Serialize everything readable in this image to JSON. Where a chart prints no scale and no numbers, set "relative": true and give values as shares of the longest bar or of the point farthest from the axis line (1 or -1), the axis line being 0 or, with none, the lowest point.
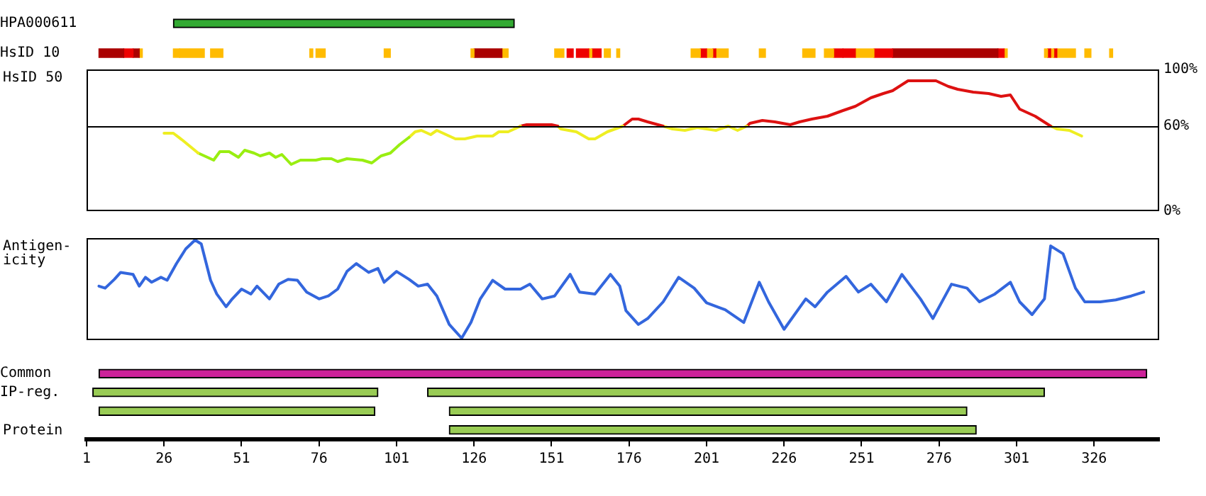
{
  "chart_data": [
    {
      "type": "bar",
      "orientation": "horizontal",
      "categories": [
        "HPA000611",
        "HsID 10"
      ],
      "xlim": [
        1,
        347
      ],
      "tick_labels": "y",
      "series": [
        {
          "color": "#33aa33",
          "base": [
            29,
            null
          ],
          "values": [
            110,
            null
          ]
        },
        {
          "color": "#aa0000",
          "base": [
            null,
            5
          ],
          "values": [
            null,
            8
          ]
        },
        {
          "color": "#ee0000",
          "base": [
            null,
            13
          ],
          "values": [
            null,
            3
          ]
        },
        {
          "color": "#aa0000",
          "base": [
            null,
            16
          ],
          "values": [
            null,
            2
          ]
        },
        {
          "color": "#ffbb00",
          "base": [
            null,
            18
          ],
          "values": [
            null,
            1
          ]
        },
        {
          "color": "#ffbb00",
          "base": [
            null,
            29
          ],
          "values": [
            null,
            2
          ]
        },
        {
          "color": "#ffbb00",
          "base": [
            null,
            31
          ],
          "values": [
            null,
            8
          ]
        },
        {
          "color": "#ffbb00",
          "base": [
            null,
            41
          ],
          "values": [
            null,
            4
          ]
        },
        {
          "color": "#ffbb00",
          "base": [
            null,
            73
          ],
          "values": [
            null,
            1
          ]
        },
        {
          "color": "#ffbb00",
          "base": [
            null,
            75
          ],
          "values": [
            null,
            3
          ]
        },
        {
          "color": "#ffbb00",
          "base": [
            null,
            97
          ],
          "values": [
            null,
            2
          ]
        },
        {
          "color": "#ffbb00",
          "base": [
            null,
            125
          ],
          "values": [
            null,
            1
          ]
        },
        {
          "color": "#aa0000",
          "base": [
            null,
            126
          ],
          "values": [
            null,
            9
          ]
        },
        {
          "color": "#ffbb00",
          "base": [
            null,
            135
          ],
          "values": [
            null,
            2
          ]
        },
        {
          "color": "#ffbb00",
          "base": [
            null,
            152
          ],
          "values": [
            null,
            3
          ]
        },
        {
          "color": "#ee0000",
          "base": [
            null,
            156
          ],
          "values": [
            null,
            2
          ]
        },
        {
          "color": "#ee0000",
          "base": [
            null,
            159
          ],
          "values": [
            null,
            4
          ]
        },
        {
          "color": "#ffbb00",
          "base": [
            null,
            163
          ],
          "values": [
            null,
            1
          ]
        },
        {
          "color": "#ee0000",
          "base": [
            null,
            164
          ],
          "values": [
            null,
            3
          ]
        },
        {
          "color": "#ffbb00",
          "base": [
            null,
            168
          ],
          "values": [
            null,
            2
          ]
        },
        {
          "color": "#ffbb00",
          "base": [
            null,
            172
          ],
          "values": [
            null,
            1
          ]
        },
        {
          "color": "#ffbb00",
          "base": [
            null,
            196
          ],
          "values": [
            null,
            3
          ]
        },
        {
          "color": "#ee0000",
          "base": [
            null,
            199
          ],
          "values": [
            null,
            2
          ]
        },
        {
          "color": "#ffbb00",
          "base": [
            null,
            201
          ],
          "values": [
            null,
            2
          ]
        },
        {
          "color": "#ee0000",
          "base": [
            null,
            203
          ],
          "values": [
            null,
            1
          ]
        },
        {
          "color": "#ffbb00",
          "base": [
            null,
            204
          ],
          "values": [
            null,
            4
          ]
        },
        {
          "color": "#ffbb00",
          "base": [
            null,
            218
          ],
          "values": [
            null,
            2
          ]
        },
        {
          "color": "#ffbb00",
          "base": [
            null,
            232
          ],
          "values": [
            null,
            4
          ]
        },
        {
          "color": "#ffbb00",
          "base": [
            null,
            239
          ],
          "values": [
            null,
            3
          ]
        },
        {
          "color": "#ee0000",
          "base": [
            null,
            242
          ],
          "values": [
            null,
            3
          ]
        },
        {
          "color": "#ee0000",
          "base": [
            null,
            245
          ],
          "values": [
            null,
            4
          ]
        },
        {
          "color": "#ffbb00",
          "base": [
            null,
            249
          ],
          "values": [
            null,
            6
          ]
        },
        {
          "color": "#ee0000",
          "base": [
            null,
            255
          ],
          "values": [
            null,
            6
          ]
        },
        {
          "color": "#aa0000",
          "base": [
            null,
            261
          ],
          "values": [
            null,
            34
          ]
        },
        {
          "color": "#ee0000",
          "base": [
            null,
            295
          ],
          "values": [
            null,
            2
          ]
        },
        {
          "color": "#ffbb00",
          "base": [
            null,
            297
          ],
          "values": [
            null,
            1
          ]
        },
        {
          "color": "#ffbb00",
          "base": [
            null,
            310
          ],
          "values": [
            null,
            1
          ]
        },
        {
          "color": "#ee0000",
          "base": [
            null,
            311
          ],
          "values": [
            null,
            1
          ]
        },
        {
          "color": "#ffbb00",
          "base": [
            null,
            312
          ],
          "values": [
            null,
            1
          ]
        },
        {
          "color": "#ee0000",
          "base": [
            null,
            313
          ],
          "values": [
            null,
            1
          ]
        },
        {
          "color": "#ffbb00",
          "base": [
            null,
            314
          ],
          "values": [
            null,
            6
          ]
        },
        {
          "color": "#ffbb00",
          "base": [
            null,
            323
          ],
          "values": [
            null,
            2
          ]
        },
        {
          "color": "#ffbb00",
          "base": [
            null,
            331
          ],
          "values": [
            null,
            1
          ]
        }
      ]
    },
    {
      "type": "line",
      "ylabel": "HsID 50",
      "xlim": [
        1,
        347
      ],
      "ylim": [
        0,
        100
      ],
      "yticks": [
        {
          "value": 0,
          "label": "0%"
        },
        {
          "value": 60,
          "label": "60%"
        },
        {
          "value": 100,
          "label": "100%"
        }
      ],
      "tick_labels": "y",
      "marker": "none",
      "ref_lines": [
        {
          "axis": "y",
          "value": 60,
          "color": "#000000"
        }
      ],
      "series": [
        {
          "color": "#eeee22",
          "x": [
            26,
            29,
            32,
            37
          ],
          "values": [
            55,
            55,
            50,
            41
          ]
        },
        {
          "color": "#99ee11",
          "x": [
            37,
            39,
            42,
            44,
            47,
            50,
            52,
            55,
            57,
            60,
            62,
            64,
            67,
            70,
            75,
            77,
            80,
            82,
            85,
            90,
            93,
            96,
            99,
            102,
            105
          ],
          "values": [
            41,
            39,
            36,
            42,
            42,
            38,
            43,
            41,
            39,
            41,
            38,
            40,
            33,
            36,
            36,
            37,
            37,
            35,
            37,
            36,
            34,
            39,
            41,
            47,
            52
          ]
        },
        {
          "color": "#eeee22",
          "x": [
            105,
            107,
            109,
            112,
            114,
            117,
            120,
            123,
            127,
            132,
            134,
            137,
            141
          ],
          "values": [
            52,
            56,
            57,
            54,
            57,
            54,
            51,
            51,
            53,
            53,
            56,
            56,
            60
          ]
        },
        {
          "color": "#dd1111",
          "x": [
            141,
            143,
            147,
            151,
            153
          ],
          "values": [
            60,
            61,
            61,
            61,
            60
          ]
        },
        {
          "color": "#eeee22",
          "x": [
            153,
            154,
            159,
            163,
            165,
            169,
            174
          ],
          "values": [
            60,
            58,
            56,
            51,
            51,
            56,
            60
          ]
        },
        {
          "color": "#dd1111",
          "x": [
            174,
            177,
            179,
            182,
            187
          ],
          "values": [
            60,
            65,
            65,
            63,
            60
          ]
        },
        {
          "color": "#eeee22",
          "x": [
            187,
            190,
            194,
            198,
            201,
            204,
            208,
            211,
            214
          ],
          "values": [
            60,
            58,
            57,
            59,
            58,
            57,
            60,
            57,
            60
          ]
        },
        {
          "color": "#dd1111",
          "x": [
            214,
            215,
            219,
            223,
            228,
            231,
            235,
            240,
            245,
            249,
            254,
            258,
            261,
            266,
            275,
            279,
            282,
            287,
            292,
            296,
            299,
            302,
            307,
            312
          ],
          "values": [
            60,
            62,
            64,
            63,
            61,
            63,
            65,
            67,
            71,
            74,
            80,
            83,
            85,
            92,
            92,
            88,
            86,
            84,
            83,
            81,
            82,
            72,
            67,
            60
          ]
        },
        {
          "color": "#eeee22",
          "x": [
            312,
            314,
            318,
            322
          ],
          "values": [
            60,
            58,
            57,
            53
          ]
        }
      ]
    },
    {
      "type": "line",
      "ylabel": "Antigen-icity",
      "relative": true,
      "xlim": [
        1,
        347
      ],
      "tick_labels": false,
      "marker": "none",
      "series": [
        {
          "color": "#3366dd",
          "x": [
            5,
            7,
            10,
            12,
            16,
            18,
            20,
            22,
            25,
            27,
            30,
            33,
            36,
            38,
            41,
            43,
            46,
            48,
            51,
            54,
            56,
            60,
            63,
            66,
            69,
            72,
            76,
            79,
            82,
            85,
            88,
            92,
            95,
            97,
            101,
            105,
            108,
            111,
            114,
            118,
            122,
            125,
            128,
            132,
            136,
            141,
            144,
            148,
            152,
            157,
            160,
            165,
            170,
            173,
            175,
            179,
            182,
            187,
            192,
            197,
            201,
            207,
            213,
            218,
            221,
            226,
            233,
            236,
            240,
            246,
            250,
            254,
            259,
            264,
            270,
            274,
            280,
            285,
            289,
            294,
            299,
            302,
            306,
            310,
            312,
            316,
            320,
            323,
            328,
            333,
            338,
            342
          ],
          "values": [
            0.53,
            0.51,
            0.6,
            0.67,
            0.65,
            0.53,
            0.62,
            0.57,
            0.62,
            0.59,
            0.76,
            0.91,
            1,
            0.96,
            0.59,
            0.45,
            0.32,
            0.4,
            0.5,
            0.45,
            0.53,
            0.4,
            0.55,
            0.6,
            0.59,
            0.47,
            0.4,
            0.43,
            0.5,
            0.68,
            0.76,
            0.67,
            0.71,
            0.57,
            0.68,
            0.6,
            0.53,
            0.55,
            0.43,
            0.14,
            0,
            0.16,
            0.4,
            0.59,
            0.5,
            0.5,
            0.55,
            0.4,
            0.43,
            0.65,
            0.47,
            0.45,
            0.65,
            0.53,
            0.28,
            0.14,
            0.2,
            0.37,
            0.62,
            0.51,
            0.36,
            0.29,
            0.16,
            0.57,
            0.37,
            0.09,
            0.4,
            0.32,
            0.47,
            0.63,
            0.47,
            0.55,
            0.37,
            0.65,
            0.4,
            0.2,
            0.55,
            0.51,
            0.37,
            0.45,
            0.57,
            0.37,
            0.24,
            0.4,
            0.94,
            0.86,
            0.51,
            0.37,
            0.37,
            0.39,
            0.43,
            0.47
          ]
        }
      ]
    },
    {
      "type": "bar",
      "orientation": "horizontal",
      "categories": [
        "Common",
        "IP-reg.",
        null,
        null
      ],
      "xlabel": "Protein",
      "xlim": [
        1,
        347
      ],
      "xticks": [
        1,
        26,
        51,
        76,
        101,
        126,
        151,
        176,
        201,
        226,
        251,
        276,
        301,
        326
      ],
      "series": [
        {
          "colors": [
            "#cc2299",
            "#99cc55",
            "#99cc55",
            "#99cc55"
          ],
          "base": [
            5,
            3,
            5,
            118
          ],
          "values": [
            338,
            92,
            89,
            170
          ]
        },
        {
          "color": "#99cc55",
          "base": [
            null,
            111,
            118,
            null
          ],
          "values": [
            null,
            199,
            167,
            null
          ]
        }
      ]
    }
  ]
}
